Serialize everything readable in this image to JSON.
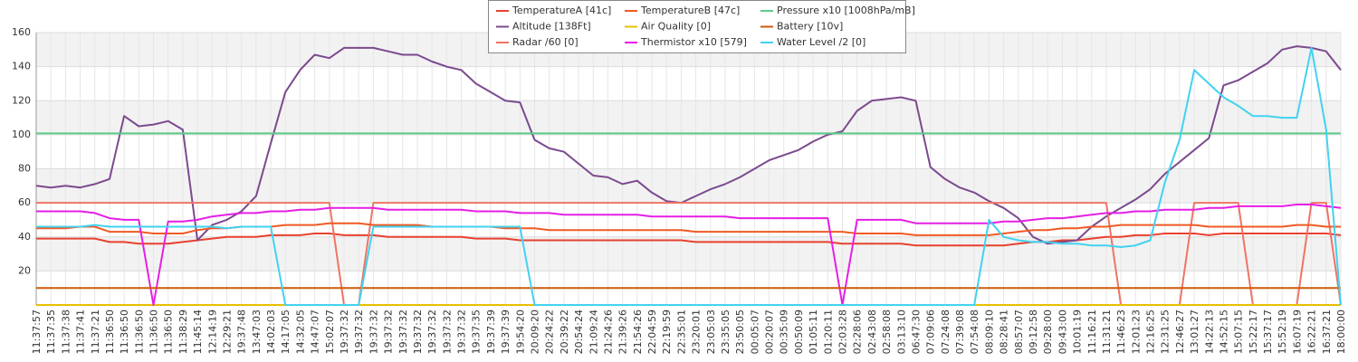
{
  "chart_data": {
    "type": "line",
    "categories": [
      "11:37:57",
      "11:37:35",
      "11:37:38",
      "11:37:41",
      "11:37:21",
      "11:36:50",
      "11:36:50",
      "11:36:50",
      "11:36:50",
      "11:36:50",
      "11:38:29",
      "11:45:14",
      "12:14:19",
      "12:29:21",
      "19:37:48",
      "13:47:03",
      "14:02:03",
      "14:17:05",
      "14:32:05",
      "14:47:07",
      "15:02:07",
      "19:37:32",
      "19:37:32",
      "19:37:32",
      "19:37:32",
      "19:37:32",
      "19:37:32",
      "19:37:32",
      "19:37:32",
      "19:37:32",
      "19:37:35",
      "19:37:39",
      "19:37:39",
      "19:54:20",
      "20:09:20",
      "20:24:22",
      "20:39:22",
      "20:54:24",
      "21:09:24",
      "21:24:26",
      "21:39:26",
      "21:54:26",
      "22:04:59",
      "22:19:59",
      "22:35:01",
      "23:20:01",
      "23:05:03",
      "23:35:05",
      "23:50:05",
      "00:05:07",
      "00:20:07",
      "00:35:09",
      "00:50:09",
      "01:05:11",
      "01:20:11",
      "02:03:28",
      "02:28:06",
      "02:43:08",
      "02:58:08",
      "03:13:10",
      "06:47:30",
      "07:09:06",
      "07:24:08",
      "07:39:08",
      "07:54:08",
      "08:09:10",
      "08:28:41",
      "08:57:07",
      "09:12:58",
      "09:28:00",
      "09:43:00",
      "10:01:19",
      "11:16:21",
      "11:31:21",
      "11:46:23",
      "12:01:23",
      "12:16:25",
      "12:31:25",
      "12:46:27",
      "13:01:27",
      "14:22:13",
      "14:52:15",
      "15:07:15",
      "15:22:17",
      "15:37:17",
      "15:52:19",
      "16:07:19",
      "16:22:21",
      "16:37:21",
      "18:00:00"
    ],
    "series": [
      {
        "name": "TemperatureA [41c]",
        "color": "#e8412f",
        "values": [
          39,
          39,
          39,
          39,
          39,
          37,
          37,
          36,
          36,
          36,
          37,
          38,
          39,
          40,
          40,
          40,
          41,
          41,
          41,
          42,
          42,
          41,
          41,
          41,
          40,
          40,
          40,
          40,
          40,
          40,
          39,
          39,
          39,
          38,
          38,
          38,
          38,
          38,
          38,
          38,
          38,
          38,
          38,
          38,
          38,
          37,
          37,
          37,
          37,
          37,
          37,
          37,
          37,
          37,
          37,
          36,
          36,
          36,
          36,
          36,
          35,
          35,
          35,
          35,
          35,
          35,
          35,
          36,
          37,
          37,
          38,
          38,
          39,
          40,
          40,
          41,
          41,
          42,
          42,
          42,
          41,
          42,
          42,
          42,
          42,
          42,
          42,
          42,
          42,
          41
        ]
      },
      {
        "name": "Altitude [138Ft]",
        "color": "#7b4a8e",
        "values": [
          70,
          69,
          70,
          69,
          71,
          74,
          111,
          105,
          106,
          108,
          103,
          38,
          47,
          50,
          55,
          64,
          95,
          125,
          138,
          147,
          145,
          151,
          151,
          151,
          149,
          147,
          147,
          143,
          140,
          138,
          130,
          125,
          120,
          119,
          97,
          92,
          90,
          83,
          76,
          75,
          71,
          73,
          66,
          61,
          60,
          64,
          68,
          71,
          75,
          80,
          85,
          88,
          91,
          96,
          100,
          102,
          114,
          120,
          121,
          122,
          120,
          81,
          74,
          69,
          66,
          61,
          57,
          51,
          40,
          36,
          37,
          38,
          46,
          52,
          57,
          62,
          68,
          77,
          84,
          91,
          98,
          129,
          132,
          137,
          142,
          150,
          152,
          151,
          149,
          138
        ]
      },
      {
        "name": "Radar /60 [0]",
        "color": "#ef7464",
        "values": [
          60,
          60,
          60,
          60,
          60,
          60,
          60,
          60,
          60,
          60,
          60,
          60,
          60,
          60,
          60,
          60,
          60,
          60,
          60,
          60,
          60,
          0,
          0,
          60,
          60,
          60,
          60,
          60,
          60,
          60,
          60,
          60,
          60,
          60,
          60,
          60,
          60,
          60,
          60,
          60,
          60,
          60,
          60,
          60,
          60,
          60,
          60,
          60,
          60,
          60,
          60,
          60,
          60,
          60,
          60,
          60,
          60,
          60,
          60,
          60,
          60,
          60,
          60,
          60,
          60,
          60,
          60,
          60,
          60,
          60,
          60,
          60,
          60,
          60,
          0,
          0,
          0,
          0,
          0,
          60,
          60,
          60,
          60,
          0,
          0,
          0,
          0,
          60,
          60,
          0
        ]
      },
      {
        "name": "TemperatureB [47c]",
        "color": "#f05a24",
        "values": [
          45,
          45,
          45,
          46,
          46,
          43,
          43,
          43,
          42,
          42,
          42,
          44,
          45,
          45,
          46,
          46,
          46,
          47,
          47,
          47,
          48,
          48,
          48,
          47,
          47,
          47,
          47,
          46,
          46,
          46,
          46,
          46,
          45,
          45,
          45,
          44,
          44,
          44,
          44,
          44,
          44,
          44,
          44,
          44,
          44,
          43,
          43,
          43,
          43,
          43,
          43,
          43,
          43,
          43,
          43,
          43,
          42,
          42,
          42,
          42,
          41,
          41,
          41,
          41,
          41,
          41,
          42,
          43,
          44,
          44,
          45,
          45,
          46,
          46,
          47,
          47,
          47,
          47,
          47,
          47,
          46,
          46,
          46,
          46,
          46,
          46,
          47,
          47,
          46,
          46
        ]
      },
      {
        "name": "Air Quality [0]",
        "color": "#e8c000",
        "values": [
          0,
          0,
          0,
          0,
          0,
          0,
          0,
          0,
          0,
          0,
          0,
          0,
          0,
          0,
          0,
          0,
          0,
          0,
          0,
          0,
          0,
          0,
          0,
          0,
          0,
          0,
          0,
          0,
          0,
          0,
          0,
          0,
          0,
          0,
          0,
          0,
          0,
          0,
          0,
          0,
          0,
          0,
          0,
          0,
          0,
          0,
          0,
          0,
          0,
          0,
          0,
          0,
          0,
          0,
          0,
          0,
          0,
          0,
          0,
          0,
          0,
          0,
          0,
          0,
          0,
          0,
          0,
          0,
          0,
          0,
          0,
          0,
          0,
          0,
          0,
          0,
          0,
          0,
          0,
          0,
          0,
          0,
          0,
          0,
          0,
          0,
          0,
          0,
          0,
          0
        ]
      },
      {
        "name": "Thermistor x10 [579]",
        "color": "#e61ee6",
        "values": [
          55,
          55,
          55,
          55,
          54,
          51,
          50,
          50,
          0,
          49,
          49,
          50,
          52,
          53,
          54,
          54,
          55,
          55,
          56,
          56,
          57,
          57,
          57,
          57,
          56,
          56,
          56,
          56,
          56,
          56,
          55,
          55,
          55,
          54,
          54,
          54,
          53,
          53,
          53,
          53,
          53,
          53,
          52,
          52,
          52,
          52,
          52,
          52,
          51,
          51,
          51,
          51,
          51,
          51,
          51,
          0,
          50,
          50,
          50,
          50,
          48,
          48,
          48,
          48,
          48,
          48,
          49,
          49,
          50,
          51,
          51,
          52,
          53,
          54,
          54,
          55,
          55,
          56,
          56,
          56,
          57,
          57,
          58,
          58,
          58,
          58,
          59,
          59,
          58,
          57
        ]
      },
      {
        "name": "Pressure x10 [1008hPa/mB]",
        "color": "#5ccc8a",
        "values": [
          100.8,
          100.8,
          100.8,
          100.8,
          100.8,
          100.8,
          100.8,
          100.8,
          100.8,
          100.8,
          100.8,
          100.8,
          100.8,
          100.8,
          100.8,
          100.8,
          100.8,
          100.8,
          100.8,
          100.8,
          100.8,
          100.8,
          100.8,
          100.8,
          100.8,
          100.8,
          100.8,
          100.8,
          100.8,
          100.8,
          100.8,
          100.8,
          100.8,
          100.8,
          100.8,
          100.8,
          100.8,
          100.8,
          100.8,
          100.8,
          100.8,
          100.8,
          100.8,
          100.8,
          100.8,
          100.8,
          100.8,
          100.8,
          100.8,
          100.8,
          100.8,
          100.8,
          100.8,
          100.8,
          100.8,
          100.8,
          100.8,
          100.8,
          100.8,
          100.8,
          100.8,
          100.8,
          100.8,
          100.8,
          100.8,
          100.8,
          100.8,
          100.8,
          100.8,
          100.8,
          100.8,
          100.8,
          100.8,
          100.8,
          100.8,
          100.8,
          100.8,
          100.8,
          100.8,
          100.8,
          100.8,
          100.8,
          100.8,
          100.8,
          100.8,
          100.8,
          100.8,
          100.8,
          100.8,
          100.8
        ]
      },
      {
        "name": "Battery [10v]",
        "color": "#d05a0a",
        "values": [
          10,
          10,
          10,
          10,
          10,
          10,
          10,
          10,
          10,
          10,
          10,
          10,
          10,
          10,
          10,
          10,
          10,
          10,
          10,
          10,
          10,
          10,
          10,
          10,
          10,
          10,
          10,
          10,
          10,
          10,
          10,
          10,
          10,
          10,
          10,
          10,
          10,
          10,
          10,
          10,
          10,
          10,
          10,
          10,
          10,
          10,
          10,
          10,
          10,
          10,
          10,
          10,
          10,
          10,
          10,
          10,
          10,
          10,
          10,
          10,
          10,
          10,
          10,
          10,
          10,
          10,
          10,
          10,
          10,
          10,
          10,
          10,
          10,
          10,
          10,
          10,
          10,
          10,
          10,
          10,
          10,
          10,
          10,
          10,
          10,
          10,
          10,
          10,
          10,
          10
        ]
      },
      {
        "name": "Water Level /2 [0]",
        "color": "#42d2f0",
        "values": [
          46,
          46,
          46,
          46,
          47,
          46,
          46,
          46,
          46,
          46,
          46,
          46,
          46,
          45,
          46,
          46,
          46,
          0,
          0,
          0,
          0,
          0,
          0,
          46,
          46,
          46,
          46,
          46,
          46,
          46,
          46,
          46,
          46,
          46,
          0,
          0,
          0,
          0,
          0,
          0,
          0,
          0,
          0,
          0,
          0,
          0,
          0,
          0,
          0,
          0,
          0,
          0,
          0,
          0,
          0,
          0,
          0,
          0,
          0,
          0,
          0,
          0,
          0,
          0,
          0,
          50,
          40,
          38,
          37,
          37,
          36,
          36,
          35,
          35,
          34,
          35,
          38,
          72,
          97,
          138,
          130,
          122,
          117,
          111,
          111,
          110,
          110,
          151,
          103,
          0
        ]
      }
    ],
    "ylim": [
      0,
      160
    ],
    "yticks": [
      20,
      40,
      60,
      80,
      100,
      120,
      140,
      160
    ],
    "grid": true,
    "legend": "top"
  }
}
